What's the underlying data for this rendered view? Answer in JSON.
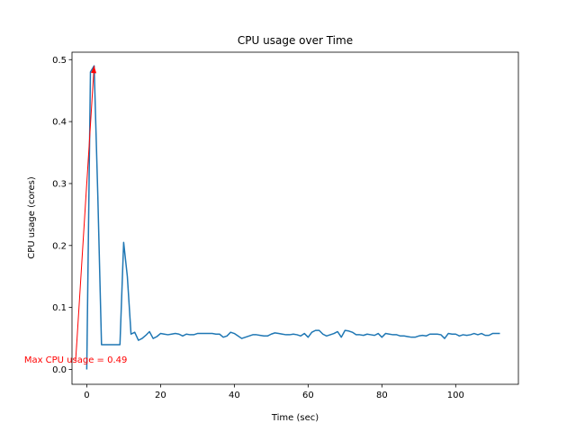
{
  "chart_data": {
    "type": "line",
    "title": "CPU usage over Time",
    "xlabel": "Time (sec)",
    "ylabel": "CPU usage (cores)",
    "xlim": [
      -4,
      117
    ],
    "ylim": [
      -0.024,
      0.512
    ],
    "xticks": [
      0,
      20,
      40,
      60,
      80,
      100
    ],
    "yticks": [
      0.0,
      0.1,
      0.2,
      0.3,
      0.4,
      0.5
    ],
    "grid": false,
    "colors": {
      "series": "#1f77b4",
      "annotation": "#ff0000"
    },
    "series": [
      {
        "x": [
          0,
          1,
          2,
          3,
          4,
          5,
          6,
          7,
          8,
          9,
          10,
          11,
          12,
          13,
          14,
          15,
          16,
          17,
          18,
          19,
          20,
          21,
          22,
          23,
          24,
          25,
          26,
          27,
          28,
          29,
          30,
          31,
          32,
          33,
          34,
          35,
          36,
          37,
          38,
          39,
          40,
          41,
          42,
          43,
          44,
          45,
          46,
          47,
          48,
          49,
          50,
          51,
          52,
          53,
          54,
          55,
          56,
          57,
          58,
          59,
          60,
          61,
          62,
          63,
          64,
          65,
          66,
          67,
          68,
          69,
          70,
          71,
          72,
          73,
          74,
          75,
          76,
          77,
          78,
          79,
          80,
          81,
          82,
          83,
          84,
          85,
          86,
          87,
          88,
          89,
          90,
          91,
          92,
          93,
          94,
          95,
          96,
          97,
          98,
          99,
          100,
          101,
          102,
          103,
          104,
          105,
          106,
          107,
          108,
          109,
          110,
          111,
          112
        ],
        "values": [
          0.0,
          0.48,
          0.49,
          0.28,
          0.04,
          0.04,
          0.04,
          0.04,
          0.04,
          0.04,
          0.205,
          0.15,
          0.057,
          0.06,
          0.047,
          0.05,
          0.055,
          0.061,
          0.05,
          0.053,
          0.058,
          0.057,
          0.056,
          0.057,
          0.058,
          0.057,
          0.054,
          0.057,
          0.056,
          0.056,
          0.058,
          0.058,
          0.058,
          0.058,
          0.058,
          0.057,
          0.057,
          0.052,
          0.054,
          0.06,
          0.058,
          0.054,
          0.05,
          0.052,
          0.054,
          0.056,
          0.056,
          0.055,
          0.054,
          0.054,
          0.057,
          0.059,
          0.058,
          0.057,
          0.056,
          0.056,
          0.057,
          0.056,
          0.054,
          0.058,
          0.052,
          0.06,
          0.063,
          0.063,
          0.057,
          0.054,
          0.056,
          0.058,
          0.061,
          0.052,
          0.063,
          0.062,
          0.06,
          0.056,
          0.056,
          0.055,
          0.057,
          0.056,
          0.055,
          0.058,
          0.052,
          0.058,
          0.057,
          0.056,
          0.056,
          0.054,
          0.054,
          0.053,
          0.052,
          0.052,
          0.054,
          0.055,
          0.054,
          0.057,
          0.057,
          0.057,
          0.056,
          0.05,
          0.058,
          0.057,
          0.057,
          0.054,
          0.056,
          0.055,
          0.056,
          0.058,
          0.056,
          0.058,
          0.055,
          0.055,
          0.058,
          0.058,
          0.058
        ]
      }
    ],
    "annotation": {
      "text": "Max CPU usage = 0.49",
      "xy": [
        2,
        0.49
      ],
      "xytext": [
        -3,
        0.015
      ]
    }
  }
}
